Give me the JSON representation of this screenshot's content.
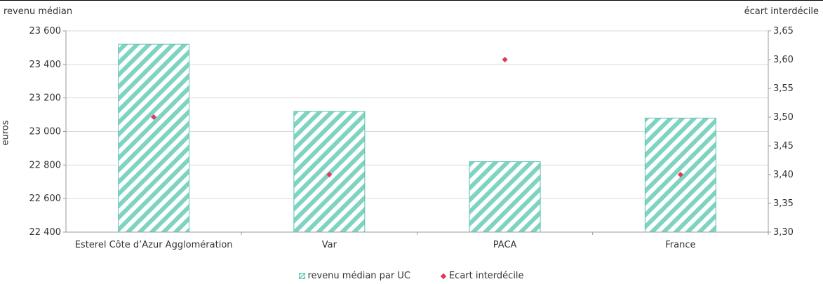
{
  "chart_data": {
    "type": "bar",
    "categories": [
      "Esterel Côte d’Azur Agglomération",
      "Var",
      "PACA",
      "France"
    ],
    "series": [
      {
        "name": "revenu médian par UC",
        "type": "bar",
        "axis": "left",
        "values": [
          23520,
          23120,
          22820,
          23080
        ]
      },
      {
        "name": "Ecart interdécile",
        "type": "scatter",
        "axis": "right",
        "values": [
          3.5,
          3.4,
          3.6,
          3.4
        ]
      }
    ],
    "y_left": {
      "title": "revenu médian",
      "label": "euros",
      "ylim": [
        22400,
        23600
      ],
      "ticks": [
        "22 400",
        "22 600",
        "22 800",
        "23 000",
        "23 200",
        "23 400",
        "23 600"
      ]
    },
    "y_right": {
      "title": "écart interdécile",
      "ylim": [
        3.3,
        3.65
      ],
      "ticks": [
        "3,30",
        "3,35",
        "3,40",
        "3,45",
        "3,50",
        "3,55",
        "3,60",
        "3,65"
      ]
    },
    "grid": true,
    "legend_position": "bottom",
    "colors": {
      "bar": "#7fd3c3",
      "bar_border": "#5fc3b0",
      "marker": "#e0375a",
      "grid": "#d9d9d9"
    }
  }
}
